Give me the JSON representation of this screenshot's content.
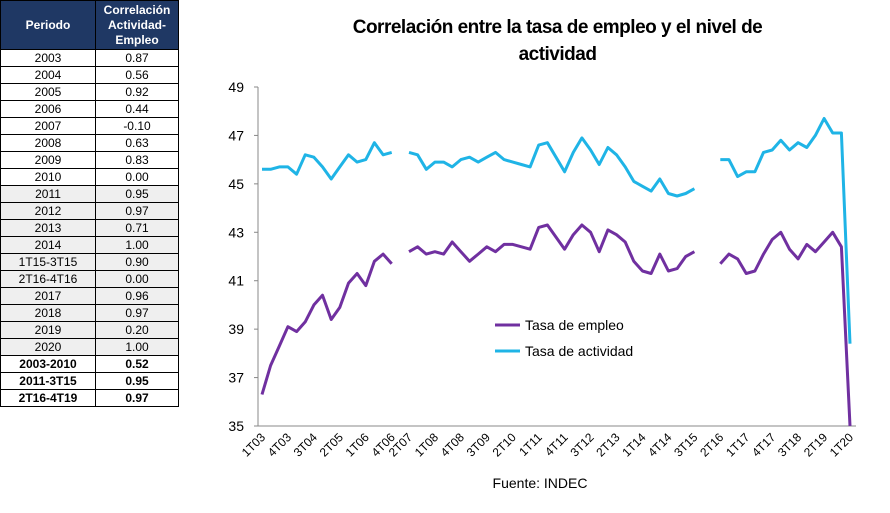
{
  "table": {
    "header": [
      "Periodo",
      "Correlación Actividad-Empleo"
    ],
    "rows": [
      [
        "2003",
        "0.87"
      ],
      [
        "2004",
        "0.56"
      ],
      [
        "2005",
        "0.92"
      ],
      [
        "2006",
        "0.44"
      ],
      [
        "2007",
        "-0.10"
      ],
      [
        "2008",
        "0.63"
      ],
      [
        "2009",
        "0.83"
      ],
      [
        "2010",
        "0.00"
      ],
      [
        "2011",
        "0.95"
      ],
      [
        "2012",
        "0.97"
      ],
      [
        "2013",
        "0.71"
      ],
      [
        "2014",
        "1.00"
      ],
      [
        "1T15-3T15",
        "0.90"
      ],
      [
        "2T16-4T16",
        "0.00"
      ],
      [
        "2017",
        "0.96"
      ],
      [
        "2018",
        "0.97"
      ],
      [
        "2019",
        "0.20"
      ],
      [
        "2020",
        "1.00"
      ]
    ],
    "summary": [
      [
        "2003-2010",
        "0.52"
      ],
      [
        "2011-3T15",
        "0.95"
      ],
      [
        "2T16-4T19",
        "0.97"
      ]
    ]
  },
  "chart_data": {
    "type": "line",
    "title": "Correlación entre la tasa de empleo y el nivel de actividad",
    "source": "Fuente: INDEC",
    "categories": [
      "1T03",
      null,
      null,
      "4T03",
      null,
      null,
      "3T04",
      null,
      null,
      "2T05",
      null,
      null,
      "1T06",
      null,
      null,
      "4T06",
      null,
      "2T07",
      null,
      null,
      "1T08",
      null,
      null,
      "4T08",
      null,
      null,
      "3T09",
      null,
      null,
      "2T10",
      null,
      null,
      "1T11",
      null,
      null,
      "4T11",
      null,
      null,
      "3T12",
      null,
      null,
      "2T13",
      null,
      null,
      "1T14",
      null,
      null,
      "4T14",
      null,
      null,
      "3T15",
      null,
      null,
      "2T16",
      null,
      null,
      "1T17",
      null,
      null,
      "4T17",
      null,
      null,
      "3T18",
      null,
      null,
      "2T19",
      null,
      null,
      "1T20"
    ],
    "series": [
      {
        "name": "Tasa de empleo",
        "color": "#7030a0",
        "values": [
          36.3,
          37.5,
          38.3,
          39.1,
          38.9,
          39.3,
          40.0,
          40.4,
          39.4,
          39.9,
          40.9,
          41.3,
          40.8,
          41.8,
          42.1,
          41.7,
          null,
          42.2,
          42.4,
          42.1,
          42.2,
          42.1,
          42.6,
          42.2,
          41.8,
          42.1,
          42.4,
          42.2,
          42.5,
          42.5,
          42.4,
          42.3,
          43.2,
          43.3,
          42.8,
          42.3,
          42.9,
          43.3,
          43.0,
          42.2,
          43.1,
          42.9,
          42.6,
          41.8,
          41.4,
          41.3,
          42.1,
          41.4,
          41.5,
          42.0,
          42.2,
          null,
          null,
          41.7,
          42.1,
          41.9,
          41.3,
          41.4,
          42.1,
          42.7,
          43.0,
          42.3,
          41.9,
          42.5,
          42.2,
          42.6,
          43.0,
          42.4,
          35.0
        ]
      },
      {
        "name": "Tasa de actividad",
        "color": "#1fb4e6",
        "values": [
          45.6,
          45.6,
          45.7,
          45.7,
          45.4,
          46.2,
          46.1,
          45.7,
          45.2,
          45.7,
          46.2,
          45.9,
          46.0,
          46.7,
          46.2,
          46.3,
          null,
          46.3,
          46.2,
          45.6,
          45.9,
          45.9,
          45.7,
          46.0,
          46.1,
          45.9,
          46.1,
          46.3,
          46.0,
          45.9,
          45.8,
          45.7,
          46.6,
          46.7,
          46.1,
          45.5,
          46.3,
          46.9,
          46.4,
          45.8,
          46.5,
          46.2,
          45.7,
          45.1,
          44.9,
          44.7,
          45.2,
          44.6,
          44.5,
          44.6,
          44.8,
          null,
          null,
          46.0,
          46.0,
          45.3,
          45.5,
          45.5,
          46.3,
          46.4,
          46.8,
          46.4,
          46.7,
          46.5,
          47.0,
          47.7,
          47.1,
          47.1,
          38.4
        ]
      }
    ],
    "ylim": [
      35,
      49
    ],
    "yticks": [
      35,
      37,
      39,
      41,
      43,
      45,
      47,
      49
    ],
    "grid": false
  }
}
